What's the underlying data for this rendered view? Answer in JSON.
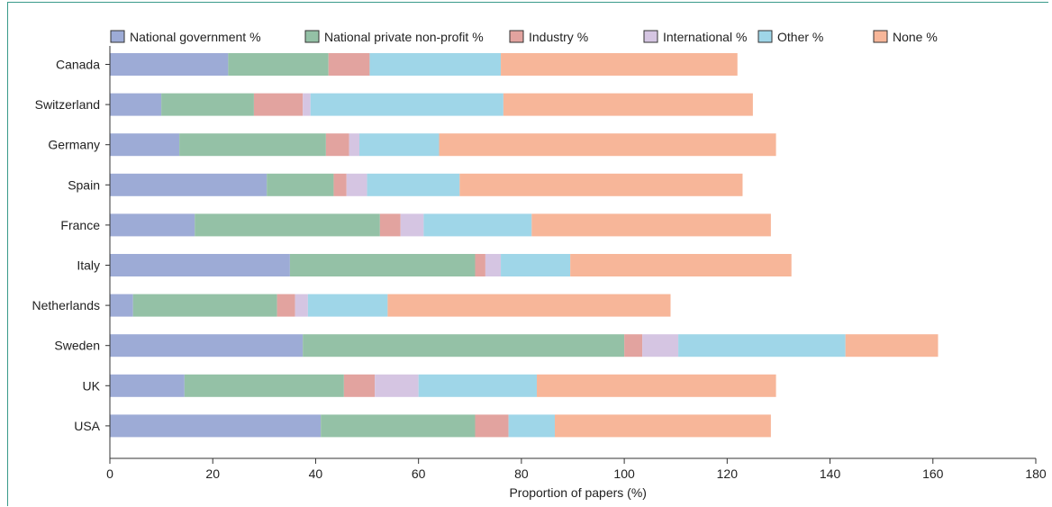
{
  "chart_data": {
    "type": "bar",
    "orientation": "horizontal",
    "stacked": true,
    "title": "",
    "xlabel": "Proportion of papers (%)",
    "ylabel": "",
    "xlim": [
      0,
      180
    ],
    "x_ticks": [
      0,
      20,
      40,
      60,
      80,
      100,
      120,
      140,
      160,
      180
    ],
    "grid": false,
    "legend_position": "top",
    "categories": [
      "Canada",
      "Switzerland",
      "Germany",
      "Spain",
      "France",
      "Italy",
      "Netherlands",
      "Sweden",
      "UK",
      "USA"
    ],
    "series": [
      {
        "name": "National government %",
        "color": "#9dabd6",
        "values": [
          23,
          10,
          13.5,
          30.5,
          16.5,
          35,
          4.5,
          37.5,
          14.5,
          41
        ]
      },
      {
        "name": "National private non-profit %",
        "color": "#94c1a6",
        "values": [
          19.5,
          18,
          28.5,
          13,
          36,
          36,
          28,
          62.5,
          31,
          30
        ]
      },
      {
        "name": "Industry %",
        "color": "#e2a39f",
        "values": [
          8,
          9.5,
          4.5,
          2.5,
          4,
          2,
          3.5,
          3.5,
          6,
          6.5
        ]
      },
      {
        "name": "International %",
        "color": "#d5c5e2",
        "values": [
          0,
          1.5,
          2,
          4,
          4.5,
          3,
          2.5,
          7,
          8.5,
          0
        ]
      },
      {
        "name": "Other %",
        "color": "#9fd6e8",
        "values": [
          25.5,
          37.5,
          15.5,
          18,
          21,
          13.5,
          15.5,
          32.5,
          23,
          9
        ]
      },
      {
        "name": "None %",
        "color": "#f7b699",
        "values": [
          46,
          48.5,
          65.5,
          55,
          46.5,
          43,
          55,
          18,
          46.5,
          42
        ]
      }
    ]
  }
}
